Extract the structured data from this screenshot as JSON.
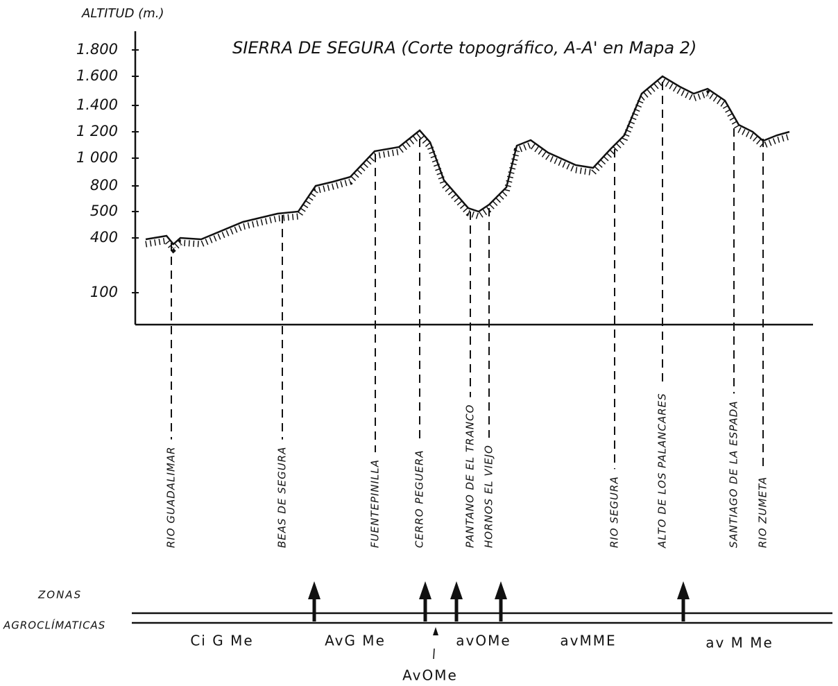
{
  "axis_label": "ALTITUD (m.)",
  "title": "SIERRA DE SEGURA (Corte topográfico, A-A' en Mapa 2)",
  "y_ticks": [
    "1.800",
    "1.600",
    "1.400",
    "1 200",
    "1 000",
    "800",
    "500",
    "400",
    "100"
  ],
  "places": [
    "RIO GUADALIMAR",
    "BEAS DE SEGURA",
    "FUENTEPINILLA",
    "CERRO PEGUERA",
    "PANTANO DE EL TRANCO",
    "HORNOS EL VIEJO",
    "RIO SEGURA",
    "ALTO DE LOS PALANCARES",
    "SANTIAGO DE LA ESPADA",
    "RIO ZUMETA"
  ],
  "zones": {
    "label_line1": "ZONAS",
    "label_line2": "AGROCLÍMATICAS",
    "names": [
      "Ci G Me",
      "AvG Me",
      "avOMe",
      "avMME",
      "av M Me",
      "AvOMe"
    ]
  }
}
